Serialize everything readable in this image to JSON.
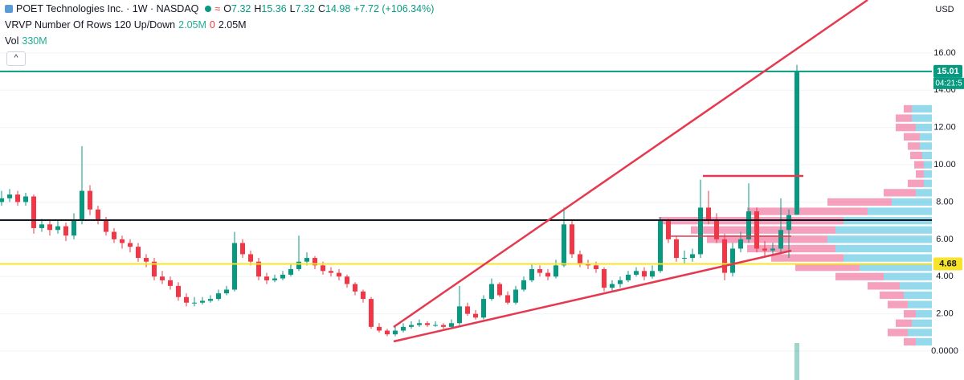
{
  "chart_data": {
    "type": "candlestick",
    "currency": "USD",
    "header": {
      "symbol": "POET Technologies Inc. · 1W · NASDAQ",
      "o": "O",
      "h": "H",
      "l": "L",
      "c": "C",
      "change": "+7.72 (+106.34%)",
      "vrvp": "VRVP Number Of Rows 120 Up/Down",
      "vrvp_up": "2.05M",
      "vrvp_down": "0",
      "vrvp_total": "2.05M",
      "vol": "Vol"
    },
    "vol": {
      "value": 330000000,
      "value_label": "330M"
    },
    "up_color": "#089981",
    "down_color": "#f23645",
    "ylim": [
      -1.55,
      18.84
    ],
    "yticks": [
      {
        "value": 0,
        "label": "0.0000"
      },
      {
        "value": 2,
        "label": "2.00"
      },
      {
        "value": 4,
        "label": "4.00"
      },
      {
        "value": 6,
        "label": "6.00"
      },
      {
        "value": 8,
        "label": "8.00"
      },
      {
        "value": 10,
        "label": "10.00"
      },
      {
        "value": 12,
        "label": "12.00"
      },
      {
        "value": 14,
        "label": "14.00"
      },
      {
        "value": 16,
        "label": "16.00"
      }
    ],
    "grid": true,
    "levels": [
      {
        "value": 15.01,
        "color": "#089981",
        "label": "15.01"
      },
      {
        "value": 7.03,
        "color": "#131722"
      },
      {
        "value": 4.68,
        "color": "#f7e32a",
        "label": "4.68"
      }
    ],
    "countdown": "04:21:5",
    "ohlc": [
      [
        8.0,
        8.6,
        7.8,
        8.2
      ],
      [
        8.2,
        8.7,
        8.0,
        8.4
      ],
      [
        8.4,
        8.6,
        7.8,
        8.0
      ],
      [
        8.0,
        8.5,
        7.8,
        8.3
      ],
      [
        8.3,
        8.4,
        6.3,
        6.6
      ],
      [
        6.6,
        7.1,
        6.4,
        6.8
      ],
      [
        6.8,
        7.0,
        6.2,
        6.5
      ],
      [
        6.5,
        7.0,
        6.3,
        6.7
      ],
      [
        6.7,
        6.9,
        5.9,
        6.2
      ],
      [
        6.2,
        7.4,
        6.0,
        7.0
      ],
      [
        7.0,
        11.0,
        6.8,
        8.6
      ],
      [
        8.6,
        8.9,
        7.3,
        7.6
      ],
      [
        7.6,
        7.8,
        6.8,
        7.0
      ],
      [
        7.0,
        7.2,
        6.2,
        6.4
      ],
      [
        6.4,
        6.6,
        5.8,
        6.0
      ],
      [
        6.0,
        6.2,
        5.5,
        5.8
      ],
      [
        5.8,
        6.0,
        5.3,
        5.6
      ],
      [
        5.6,
        5.8,
        4.8,
        5.0
      ],
      [
        5.0,
        5.2,
        4.5,
        4.8
      ],
      [
        4.8,
        5.0,
        3.8,
        4.0
      ],
      [
        4.0,
        4.3,
        3.6,
        3.8
      ],
      [
        3.8,
        4.0,
        3.3,
        3.5
      ],
      [
        3.5,
        3.7,
        2.7,
        2.9
      ],
      [
        2.9,
        3.1,
        2.4,
        2.6
      ],
      [
        2.6,
        2.9,
        2.4,
        2.6
      ],
      [
        2.6,
        2.9,
        2.5,
        2.7
      ],
      [
        2.7,
        3.0,
        2.6,
        2.8
      ],
      [
        2.8,
        3.3,
        2.7,
        3.1
      ],
      [
        3.1,
        3.5,
        3.0,
        3.3
      ],
      [
        3.3,
        6.4,
        3.2,
        5.8
      ],
      [
        5.8,
        6.0,
        5.0,
        5.2
      ],
      [
        5.2,
        5.4,
        4.6,
        4.8
      ],
      [
        4.8,
        5.0,
        3.8,
        4.0
      ],
      [
        4.0,
        4.2,
        3.6,
        3.8
      ],
      [
        3.8,
        4.1,
        3.7,
        3.9
      ],
      [
        3.9,
        4.3,
        3.8,
        4.1
      ],
      [
        4.1,
        4.7,
        4.0,
        4.4
      ],
      [
        4.4,
        6.2,
        4.3,
        4.8
      ],
      [
        4.8,
        5.3,
        4.6,
        5.0
      ],
      [
        5.0,
        5.1,
        4.4,
        4.6
      ],
      [
        4.6,
        4.8,
        4.1,
        4.3
      ],
      [
        4.3,
        4.5,
        4.0,
        4.2
      ],
      [
        4.2,
        4.4,
        3.8,
        4.0
      ],
      [
        4.0,
        4.1,
        3.4,
        3.6
      ],
      [
        3.6,
        3.7,
        3.0,
        3.2
      ],
      [
        3.2,
        3.3,
        2.6,
        2.8
      ],
      [
        2.8,
        2.9,
        1.2,
        1.3
      ],
      [
        1.3,
        1.5,
        1.0,
        1.1
      ],
      [
        1.1,
        1.2,
        0.8,
        0.9
      ],
      [
        0.9,
        1.3,
        0.8,
        1.1
      ],
      [
        1.1,
        1.5,
        1.0,
        1.3
      ],
      [
        1.3,
        1.6,
        1.2,
        1.4
      ],
      [
        1.4,
        1.7,
        1.3,
        1.5
      ],
      [
        1.5,
        1.6,
        1.3,
        1.4
      ],
      [
        1.4,
        1.6,
        1.3,
        1.4
      ],
      [
        1.4,
        1.5,
        1.2,
        1.3
      ],
      [
        1.3,
        1.7,
        1.2,
        1.5
      ],
      [
        1.5,
        3.5,
        1.4,
        2.4
      ],
      [
        2.4,
        2.6,
        1.9,
        2.0
      ],
      [
        2.0,
        2.2,
        1.7,
        1.8
      ],
      [
        1.8,
        3.0,
        1.7,
        2.8
      ],
      [
        2.8,
        3.9,
        2.7,
        3.6
      ],
      [
        3.6,
        3.7,
        2.9,
        3.0
      ],
      [
        3.0,
        3.2,
        2.5,
        2.6
      ],
      [
        2.6,
        3.5,
        2.5,
        3.3
      ],
      [
        3.3,
        4.0,
        3.2,
        3.8
      ],
      [
        3.8,
        4.7,
        3.7,
        4.4
      ],
      [
        4.4,
        4.6,
        4.0,
        4.2
      ],
      [
        4.2,
        4.4,
        3.8,
        4.0
      ],
      [
        4.0,
        4.9,
        3.9,
        4.6
      ],
      [
        4.6,
        7.7,
        4.5,
        6.8
      ],
      [
        6.8,
        7.0,
        5.0,
        5.2
      ],
      [
        5.2,
        5.4,
        4.5,
        4.7
      ],
      [
        4.7,
        4.9,
        4.4,
        4.6
      ],
      [
        4.6,
        4.8,
        4.2,
        4.4
      ],
      [
        4.4,
        4.5,
        3.2,
        3.4
      ],
      [
        3.4,
        3.8,
        3.2,
        3.6
      ],
      [
        3.6,
        4.0,
        3.4,
        3.8
      ],
      [
        3.8,
        4.3,
        3.7,
        4.1
      ],
      [
        4.1,
        4.5,
        4.0,
        4.3
      ],
      [
        4.3,
        4.5,
        3.8,
        4.0
      ],
      [
        4.0,
        4.6,
        3.9,
        4.3
      ],
      [
        4.3,
        7.2,
        4.2,
        7.0
      ],
      [
        7.0,
        7.1,
        5.8,
        6.0
      ],
      [
        6.0,
        6.2,
        4.8,
        5.0
      ],
      [
        5.0,
        5.4,
        4.7,
        5.0
      ],
      [
        5.0,
        5.5,
        4.8,
        5.2
      ],
      [
        5.2,
        9.2,
        5.0,
        7.7
      ],
      [
        7.7,
        8.6,
        6.8,
        7.0
      ],
      [
        7.0,
        7.4,
        5.8,
        6.0
      ],
      [
        6.0,
        6.3,
        3.8,
        4.2
      ],
      [
        4.2,
        5.8,
        4.0,
        5.5
      ],
      [
        5.5,
        6.4,
        5.3,
        6.0
      ],
      [
        6.0,
        9.0,
        5.8,
        7.5
      ],
      [
        7.5,
        7.7,
        5.3,
        5.5
      ],
      [
        5.5,
        5.9,
        5.0,
        5.4
      ],
      [
        5.4,
        5.8,
        5.2,
        5.5
      ],
      [
        5.5,
        8.2,
        5.3,
        6.5
      ],
      [
        6.5,
        7.6,
        5.0,
        7.3
      ],
      [
        7.32,
        15.36,
        7.32,
        14.98
      ]
    ],
    "volume_profile": {
      "up_color": "#4fc3e0",
      "down_color": "#f06292",
      "prices": [
        0.5,
        1.0,
        1.5,
        2.0,
        2.5,
        3.0,
        3.5,
        4.0,
        4.5,
        5.0,
        5.5,
        6.0,
        6.5,
        7.0,
        7.5,
        8.0,
        8.5,
        9.0,
        9.5,
        10.0,
        10.5,
        11.0,
        11.5,
        12.0,
        12.5,
        13.0
      ],
      "up": [
        20,
        30,
        25,
        20,
        30,
        35,
        40,
        60,
        90,
        110,
        120,
        130,
        120,
        110,
        80,
        50,
        20,
        10,
        10,
        10,
        12,
        15,
        15,
        20,
        25,
        25
      ],
      "down": [
        15,
        25,
        20,
        15,
        25,
        30,
        40,
        60,
        80,
        90,
        110,
        150,
        180,
        230,
        150,
        80,
        40,
        20,
        10,
        12,
        15,
        15,
        20,
        25,
        20,
        10
      ]
    }
  }
}
